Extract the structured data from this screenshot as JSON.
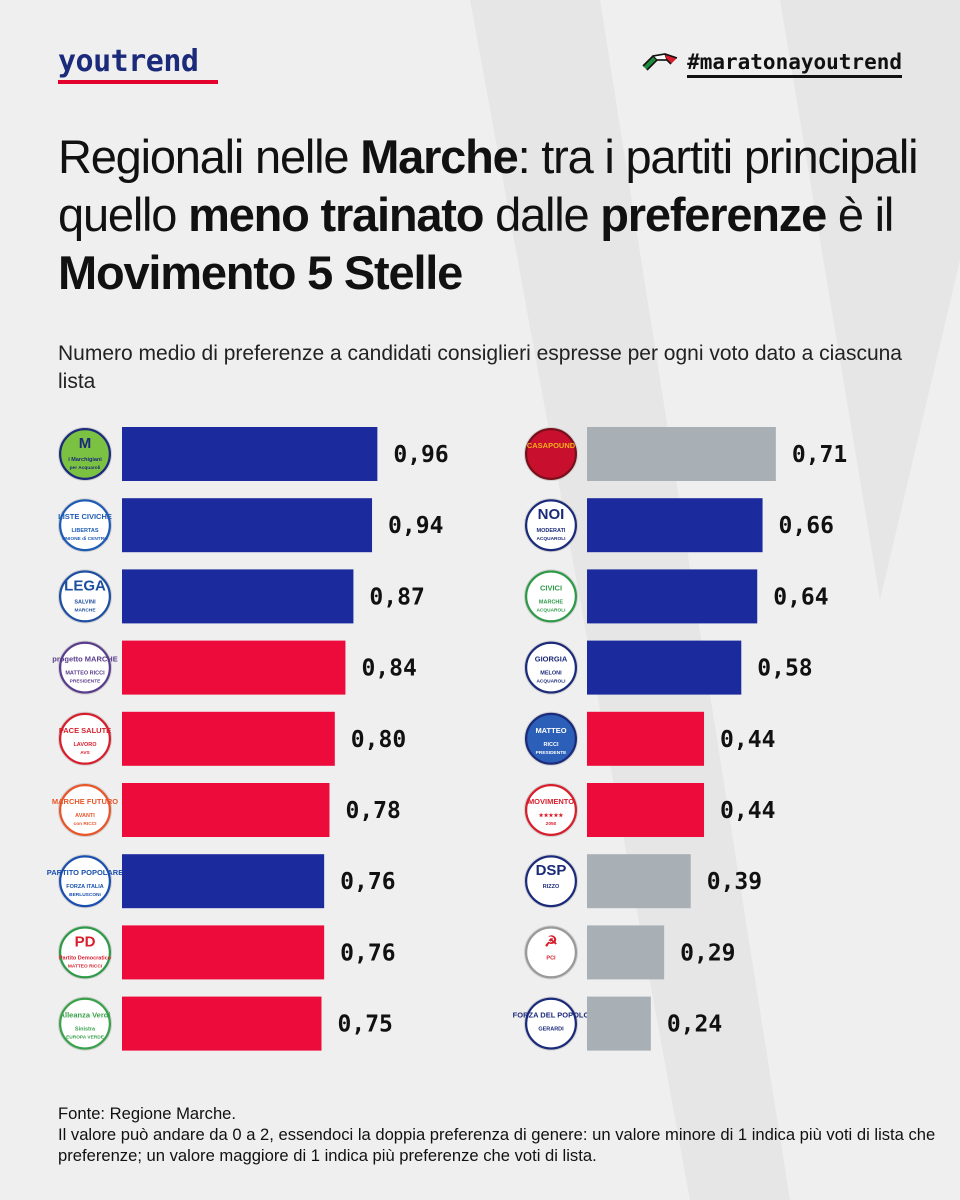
{
  "header": {
    "brand": "youtrend",
    "hashtag": "#maratonayoutrend"
  },
  "title_parts": [
    {
      "text": "Regionali nelle ",
      "bold": false
    },
    {
      "text": "Marche",
      "bold": true
    },
    {
      "text": ": tra i partiti principali quello ",
      "bold": false
    },
    {
      "text": "meno trainato",
      "bold": true
    },
    {
      "text": " dalle ",
      "bold": false
    },
    {
      "text": "preferenze",
      "bold": true
    },
    {
      "text": " è il ",
      "bold": false
    },
    {
      "text": "Movimento 5 Stelle",
      "bold": true
    }
  ],
  "subtitle": "Numero medio di preferenze a candidati consiglieri espresse per ogni voto dato a ciascuna lista",
  "colors": {
    "blue": "#1b2a9c",
    "red": "#ec0b3b",
    "grey": "#a8b0b6",
    "brand": "#1b2a7a",
    "accent": "#e3002b"
  },
  "chart_data": {
    "type": "bar",
    "orientation": "horizontal",
    "value_format": "comma-decimal",
    "columns": [
      {
        "bars": [
          {
            "value": 0.96,
            "label": "0,96",
            "color": "blue",
            "logo": {
              "bg": "#7cc242",
              "ring": "#1b2a7a",
              "lines": [
                "M",
                "i Marchigiani",
                "per Acquaroli"
              ],
              "fg": "#1b2a7a",
              "icon": "marchigiani-logo"
            }
          },
          {
            "value": 0.94,
            "label": "0,94",
            "color": "blue",
            "logo": {
              "bg": "#ffffff",
              "ring": "#1e5bb5",
              "lines": [
                "LISTE CIVICHE",
                "LIBERTAS",
                "UNIONE di CENTRO"
              ],
              "fg": "#1e5bb5",
              "icon": "udc-logo"
            }
          },
          {
            "value": 0.87,
            "label": "0,87",
            "color": "blue",
            "logo": {
              "bg": "#ffffff",
              "ring": "#1e4fa0",
              "lines": [
                "LEGA",
                "SALVINI",
                "MARCHE"
              ],
              "fg": "#1e4fa0",
              "icon": "lega-logo"
            }
          },
          {
            "value": 0.84,
            "label": "0,84",
            "color": "red",
            "logo": {
              "bg": "#ffffff",
              "ring": "#5a3d8c",
              "lines": [
                "progetto MARCHE",
                "MATTEO RICCI",
                "PRESIDENTE"
              ],
              "fg": "#5a3d8c",
              "icon": "progetto-marche-logo"
            }
          },
          {
            "value": 0.8,
            "label": "0,80",
            "color": "red",
            "logo": {
              "bg": "#ffffff",
              "ring": "#d81e2c",
              "lines": [
                "PACE SALUTE",
                "LAVORO",
                "AVS"
              ],
              "fg": "#d81e2c",
              "icon": "pace-salute-lavoro-logo"
            }
          },
          {
            "value": 0.78,
            "label": "0,78",
            "color": "red",
            "logo": {
              "bg": "#ffffff",
              "ring": "#e8562a",
              "lines": [
                "MARCHE FUTURO",
                "AVANTI",
                "con RICCI"
              ],
              "fg": "#e8562a",
              "icon": "avanti-logo"
            }
          },
          {
            "value": 0.76,
            "label": "0,76",
            "color": "blue",
            "logo": {
              "bg": "#ffffff",
              "ring": "#1a4fb0",
              "lines": [
                "PARTITO POPOLARE",
                "FORZA ITALIA",
                "BERLUSCONI"
              ],
              "fg": "#1a4fb0",
              "icon": "forza-italia-logo"
            }
          },
          {
            "value": 0.76,
            "label": "0,76",
            "color": "red",
            "logo": {
              "bg": "#ffffff",
              "ring": "#2e9a48",
              "lines": [
                "PD",
                "Partito Democratico",
                "MATTEO RICCI"
              ],
              "fg": "#d81e2c",
              "icon": "pd-logo"
            }
          },
          {
            "value": 0.75,
            "label": "0,75",
            "color": "red",
            "logo": {
              "bg": "#ffffff",
              "ring": "#3aa14b",
              "lines": [
                "Alleanza Verdi",
                "Sinistra",
                "EUROPA VERDE"
              ],
              "fg": "#3aa14b",
              "icon": "avs-logo"
            }
          }
        ]
      },
      {
        "bars": [
          {
            "value": 0.71,
            "label": "0,71",
            "color": "grey",
            "logo": {
              "bg": "#c8102e",
              "ring": "#7a0f1c",
              "lines": [
                "CASAPOUND",
                "",
                ""
              ],
              "fg": "#f2b01e",
              "icon": "wolf-logo"
            }
          },
          {
            "value": 0.66,
            "label": "0,66",
            "color": "blue",
            "logo": {
              "bg": "#ffffff",
              "ring": "#1b2a7a",
              "lines": [
                "NOI",
                "MODERATI",
                "ACQUAROLI"
              ],
              "fg": "#1b2a7a",
              "icon": "noi-moderati-logo"
            }
          },
          {
            "value": 0.64,
            "label": "0,64",
            "color": "blue",
            "logo": {
              "bg": "#ffffff",
              "ring": "#2e9a48",
              "lines": [
                "CIVICI",
                "MARCHE",
                "ACQUAROLI"
              ],
              "fg": "#2e9a48",
              "icon": "civici-marche-logo"
            }
          },
          {
            "value": 0.58,
            "label": "0,58",
            "color": "blue",
            "logo": {
              "bg": "#ffffff",
              "ring": "#1b2a7a",
              "lines": [
                "GIORGIA",
                "MELONI",
                "ACQUAROLI"
              ],
              "fg": "#1b2a7a",
              "icon": "fratelli-italia-logo"
            }
          },
          {
            "value": 0.44,
            "label": "0,44",
            "color": "red",
            "logo": {
              "bg": "#2b5fb8",
              "ring": "#1b2a7a",
              "lines": [
                "MATTEO",
                "RICCI",
                "PRESIDENTE"
              ],
              "fg": "#ffffff",
              "icon": "ricci-logo"
            }
          },
          {
            "value": 0.44,
            "label": "0,44",
            "color": "red",
            "logo": {
              "bg": "#ffffff",
              "ring": "#d81e2c",
              "lines": [
                "MOVIMENTO",
                "★★★★★",
                "2050"
              ],
              "fg": "#d81e2c",
              "icon": "m5s-logo"
            }
          },
          {
            "value": 0.39,
            "label": "0,39",
            "color": "grey",
            "logo": {
              "bg": "#ffffff",
              "ring": "#1b2a7a",
              "lines": [
                "DSP",
                "RIZZO",
                ""
              ],
              "fg": "#1b2a7a",
              "icon": "dsp-logo"
            }
          },
          {
            "value": 0.29,
            "label": "0,29",
            "color": "grey",
            "logo": {
              "bg": "#ffffff",
              "ring": "#999999",
              "lines": [
                "☭",
                "PCI",
                ""
              ],
              "fg": "#d81e2c",
              "icon": "pci-logo"
            }
          },
          {
            "value": 0.24,
            "label": "0,24",
            "color": "grey",
            "logo": {
              "bg": "#ffffff",
              "ring": "#1b2a7a",
              "lines": [
                "FORZA DEL POPOLO",
                "GERARDI",
                ""
              ],
              "fg": "#1b2a7a",
              "icon": "forza-del-popolo-logo"
            }
          }
        ]
      }
    ]
  },
  "footer": {
    "source": "Fonte: Regione Marche.",
    "note": "Il valore può andare da 0 a 2, essendoci la doppia preferenza di genere: un valore minore di 1 indica più voti di lista che preferenze; un valore maggiore di 1 indica più preferenze che voti di lista."
  }
}
